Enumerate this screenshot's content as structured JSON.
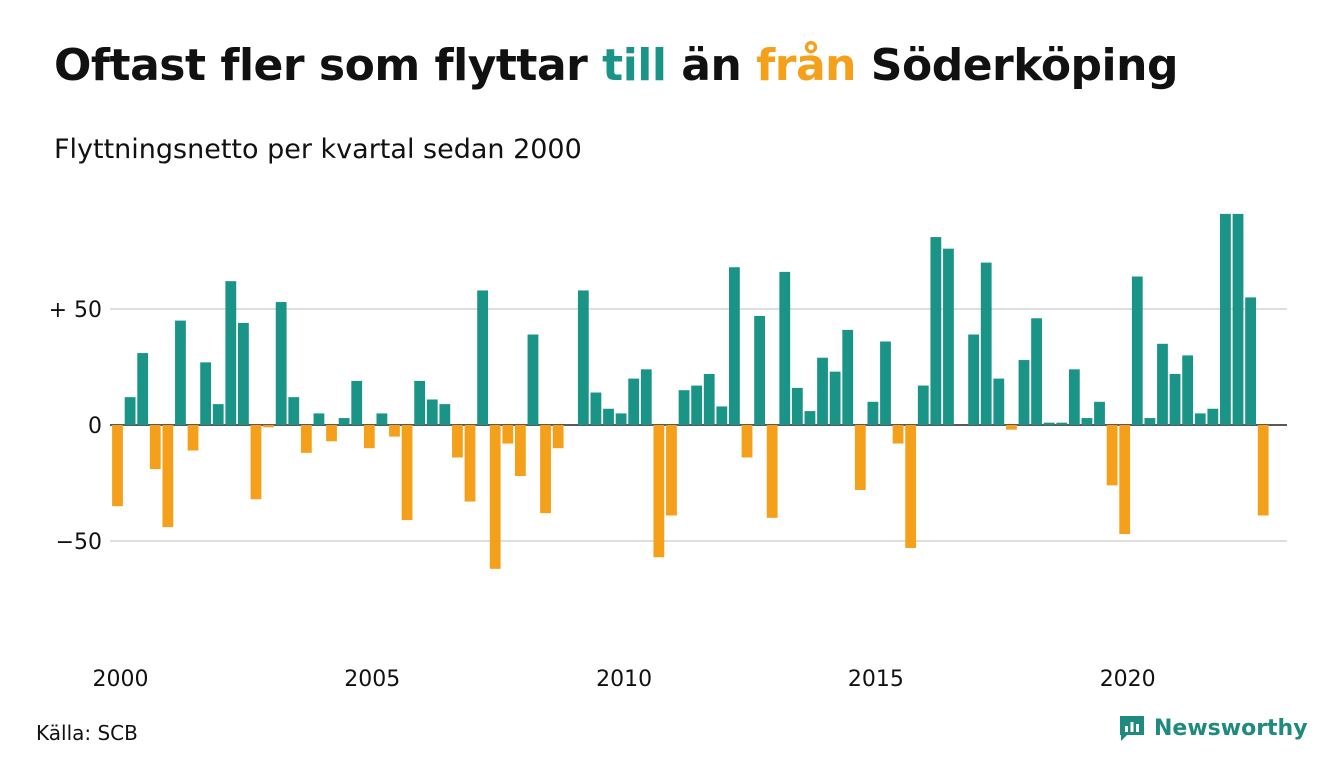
{
  "title": {
    "prefix": "Oftast fler som flyttar ",
    "till": "till",
    "middle": " än ",
    "fran": "från",
    "suffix": " Söderköping"
  },
  "subtitle": "Flyttningsnetto per kvartal sedan 2000",
  "source": "Källa: SCB",
  "brand": {
    "name": "Newsworthy",
    "icon": "newsworthy-chart-logo-icon"
  },
  "colors": {
    "positive": "#1b9488",
    "negative": "#f5a01a",
    "grid": "#d9d9d9",
    "text": "#111111",
    "brand": "#1f8a7e"
  },
  "chart_data": {
    "type": "bar",
    "title": "Oftast fler som flyttar till än från Söderköping",
    "subtitle": "Flyttningsnetto per kvartal sedan 2000",
    "x_start": "2000 Q1",
    "x_interval": "quarter",
    "xticks": [
      "2000",
      "2005",
      "2010",
      "2015",
      "2020"
    ],
    "yticks": [
      {
        "value": 50,
        "label": "+ 50"
      },
      {
        "value": 0,
        "label": "0"
      },
      {
        "value": -50,
        "label": "−50"
      }
    ],
    "ylim": [
      -90,
      90
    ],
    "grid": true,
    "legend": "none",
    "values": [
      -35,
      12,
      31,
      -19,
      -44,
      45,
      -11,
      27,
      9,
      62,
      44,
      -32,
      -1,
      53,
      12,
      -12,
      5,
      -7,
      3,
      19,
      -10,
      5,
      -5,
      -41,
      19,
      11,
      9,
      -14,
      -33,
      58,
      -62,
      -8,
      -22,
      39,
      -38,
      -10,
      0,
      58,
      14,
      7,
      5,
      20,
      24,
      -57,
      -39,
      15,
      17,
      22,
      8,
      68,
      -14,
      47,
      -40,
      66,
      16,
      6,
      29,
      23,
      41,
      -28,
      10,
      36,
      -8,
      -53,
      17,
      81,
      76,
      0,
      39,
      70,
      20,
      -2,
      28,
      46,
      1,
      1,
      24,
      3,
      10,
      -26,
      -47,
      64,
      3,
      35,
      22,
      30,
      5,
      7,
      91,
      91,
      55,
      -39
    ]
  }
}
